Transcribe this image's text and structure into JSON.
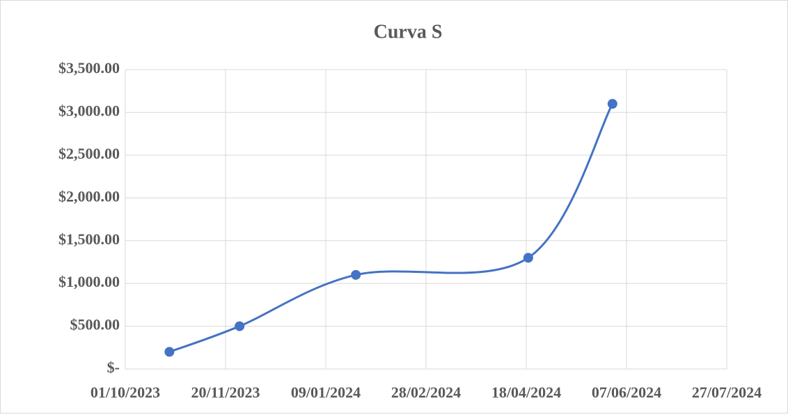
{
  "chart_data": {
    "type": "scatter",
    "title": "Curva S",
    "x": [
      "23/10/2023",
      "27/11/2023",
      "24/01/2024",
      "19/04/2024",
      "31/05/2024"
    ],
    "series": [
      {
        "name": "Curva S",
        "color": "#4472c4",
        "values": [
          200,
          500,
          1100,
          1300,
          3100
        ]
      }
    ],
    "smooth": true,
    "xlim": [
      "01/10/2023",
      "27/07/2024"
    ],
    "xticks": [
      "01/10/2023",
      "20/11/2023",
      "09/01/2024",
      "28/02/2024",
      "18/04/2024",
      "07/06/2024",
      "27/07/2024"
    ],
    "ylim": [
      0,
      3500
    ],
    "yticks": [
      {
        "value": 0,
        "label": "$-"
      },
      {
        "value": 500,
        "label": "$500.00"
      },
      {
        "value": 1000,
        "label": "$1,000.00"
      },
      {
        "value": 1500,
        "label": "$1,500.00"
      },
      {
        "value": 2000,
        "label": "$2,000.00"
      },
      {
        "value": 2500,
        "label": "$2,500.00"
      },
      {
        "value": 3000,
        "label": "$3,000.00"
      },
      {
        "value": 3500,
        "label": "$3,500.00"
      }
    ],
    "grid": true
  }
}
